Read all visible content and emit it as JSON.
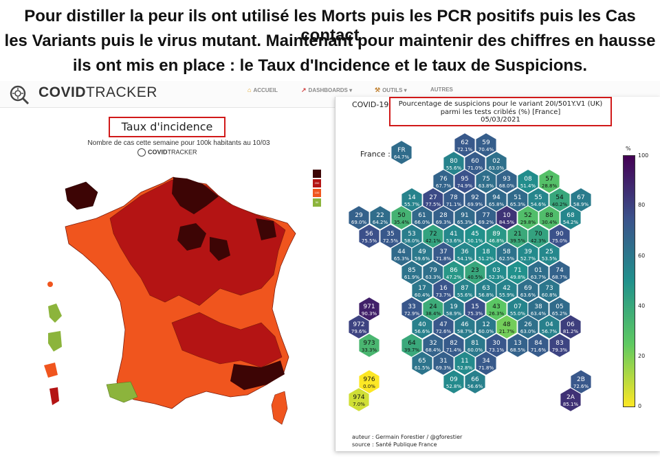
{
  "headline": {
    "line1": "Pour distiller la peur ils ont utilisé les Morts puis les PCR positifs puis les Cas contact",
    "line2": "les Variants puis le virus mutant.  Maintenant pour maintenir des chiffres en hausse",
    "line3": "ils ont mis en place :  le Taux d'Incidence et le taux de Suspicions."
  },
  "nav": {
    "brand_bold": "COVID",
    "brand_rest": "TRACKER",
    "items": [
      {
        "label": "ACCUEIL",
        "icon": "home-icon"
      },
      {
        "label": "DASHBOARDS ▾",
        "icon": "chart-icon"
      },
      {
        "label": "OUTILS ▾",
        "icon": "tools-icon"
      },
      {
        "label": "AUTRES",
        "icon": ""
      }
    ]
  },
  "incidence_map": {
    "title": "Taux d'incidence",
    "subtitle": "Nombre de cas cette semaine pour 100k habitants au 10/03",
    "logo_bold": "COVID",
    "logo_rest": "TRACKER",
    "legend": [
      {
        "label": "",
        "color": "#3d0505"
      },
      {
        "label": "200",
        "color": "#b41414"
      },
      {
        "label": "100",
        "color": "#f0551e"
      },
      {
        "label": "50",
        "color": "#8cb43c"
      }
    ]
  },
  "variant_chart": {
    "prefix": "COVID-19",
    "title_line1": "Pourcentage de suspicions pour le variant 20I/501Y.V1 (UK)",
    "title_line2": "parmi les tests criblés (%) [France]",
    "title_line3": "05/03/2021",
    "france_label": "France :",
    "credit_author": "auteur : Germain Forestier / @gforestier",
    "credit_source": "source : Santé Publique France",
    "colorbar_unit": "%",
    "colorbar_ticks": [
      "100",
      "80",
      "60",
      "40",
      "20",
      "0"
    ]
  },
  "chart_data": {
    "type": "heatmap",
    "title": "Pourcentage de suspicions pour le variant 20I/501Y.V1 (UK) parmi les tests criblés (%) [France]",
    "date": "05/03/2021",
    "colorbar_range": [
      0,
      100
    ],
    "france": {
      "code": "FR",
      "value": 64.7
    },
    "cells": [
      {
        "code": "62",
        "value": 72.1
      },
      {
        "code": "59",
        "value": 70.4
      },
      {
        "code": "80",
        "value": 55.6
      },
      {
        "code": "60",
        "value": 71.0
      },
      {
        "code": "02",
        "value": 63.0
      },
      {
        "code": "76",
        "value": 67.7
      },
      {
        "code": "95",
        "value": 74.9
      },
      {
        "code": "75",
        "value": 63.8
      },
      {
        "code": "93",
        "value": 68.0
      },
      {
        "code": "08",
        "value": 51.4
      },
      {
        "code": "57",
        "value": 28.8
      },
      {
        "code": "14",
        "value": 55.7
      },
      {
        "code": "27",
        "value": 77.5
      },
      {
        "code": "78",
        "value": 71.1
      },
      {
        "code": "92",
        "value": 69.9
      },
      {
        "code": "94",
        "value": 65.8
      },
      {
        "code": "51",
        "value": 65.3
      },
      {
        "code": "55",
        "value": 54.6
      },
      {
        "code": "54",
        "value": 40.2
      },
      {
        "code": "67",
        "value": 58.9
      },
      {
        "code": "29",
        "value": 69.0
      },
      {
        "code": "22",
        "value": 64.2
      },
      {
        "code": "50",
        "value": 35.4
      },
      {
        "code": "61",
        "value": 66.0
      },
      {
        "code": "28",
        "value": 69.3
      },
      {
        "code": "91",
        "value": 65.3
      },
      {
        "code": "77",
        "value": 69.2
      },
      {
        "code": "10",
        "value": 84.5
      },
      {
        "code": "52",
        "value": 29.8
      },
      {
        "code": "88",
        "value": 30.4
      },
      {
        "code": "68",
        "value": 54.2
      },
      {
        "code": "56",
        "value": 75.5
      },
      {
        "code": "35",
        "value": 72.5
      },
      {
        "code": "53",
        "value": 58.0
      },
      {
        "code": "72",
        "value": 42.1
      },
      {
        "code": "41",
        "value": 53.6
      },
      {
        "code": "45",
        "value": 50.1
      },
      {
        "code": "89",
        "value": 46.8
      },
      {
        "code": "21",
        "value": 39.5
      },
      {
        "code": "70",
        "value": 42.3
      },
      {
        "code": "90",
        "value": 75.0
      },
      {
        "code": "44",
        "value": 65.3
      },
      {
        "code": "49",
        "value": 59.6
      },
      {
        "code": "37",
        "value": 71.8
      },
      {
        "code": "36",
        "value": 54.1
      },
      {
        "code": "18",
        "value": 51.2
      },
      {
        "code": "58",
        "value": 62.5
      },
      {
        "code": "39",
        "value": 52.7
      },
      {
        "code": "25",
        "value": 53.5
      },
      {
        "code": "85",
        "value": 61.9
      },
      {
        "code": "79",
        "value": 63.3
      },
      {
        "code": "86",
        "value": 47.2
      },
      {
        "code": "23",
        "value": 40.5
      },
      {
        "code": "03",
        "value": 52.3
      },
      {
        "code": "71",
        "value": 49.8
      },
      {
        "code": "01",
        "value": 63.7
      },
      {
        "code": "74",
        "value": 68.7
      },
      {
        "code": "17",
        "value": 60.4
      },
      {
        "code": "16",
        "value": 73.7
      },
      {
        "code": "87",
        "value": 55.6
      },
      {
        "code": "63",
        "value": 56.8
      },
      {
        "code": "42",
        "value": 55.9
      },
      {
        "code": "69",
        "value": 63.6
      },
      {
        "code": "73",
        "value": 60.8
      },
      {
        "code": "33",
        "value": 72.9
      },
      {
        "code": "24",
        "value": 38.4
      },
      {
        "code": "19",
        "value": 58.9
      },
      {
        "code": "15",
        "value": 75.3
      },
      {
        "code": "43",
        "value": 26.3
      },
      {
        "code": "07",
        "value": 55.0
      },
      {
        "code": "38",
        "value": 63.4
      },
      {
        "code": "05",
        "value": 65.2
      },
      {
        "code": "40",
        "value": 56.6
      },
      {
        "code": "47",
        "value": 72.6
      },
      {
        "code": "46",
        "value": 58.7
      },
      {
        "code": "12",
        "value": 60.0
      },
      {
        "code": "48",
        "value": 21.7
      },
      {
        "code": "26",
        "value": 63.0
      },
      {
        "code": "04",
        "value": 56.7
      },
      {
        "code": "06",
        "value": 81.2
      },
      {
        "code": "64",
        "value": 39.7
      },
      {
        "code": "32",
        "value": 68.4
      },
      {
        "code": "82",
        "value": 71.4
      },
      {
        "code": "81",
        "value": 60.0
      },
      {
        "code": "30",
        "value": 73.1
      },
      {
        "code": "13",
        "value": 68.5
      },
      {
        "code": "84",
        "value": 71.6
      },
      {
        "code": "83",
        "value": 79.3
      },
      {
        "code": "65",
        "value": 61.5
      },
      {
        "code": "31",
        "value": 69.3
      },
      {
        "code": "11",
        "value": 52.8
      },
      {
        "code": "34",
        "value": 71.8
      },
      {
        "code": "09",
        "value": 52.8
      },
      {
        "code": "66",
        "value": 56.6
      },
      {
        "code": "971",
        "value": 90.3
      },
      {
        "code": "972",
        "value": 79.6
      },
      {
        "code": "973",
        "value": 33.3
      },
      {
        "code": "976",
        "value": 0.0
      },
      {
        "code": "974",
        "value": 7.0
      },
      {
        "code": "2B",
        "value": 72.6
      },
      {
        "code": "2A",
        "value": 85.1
      }
    ]
  }
}
